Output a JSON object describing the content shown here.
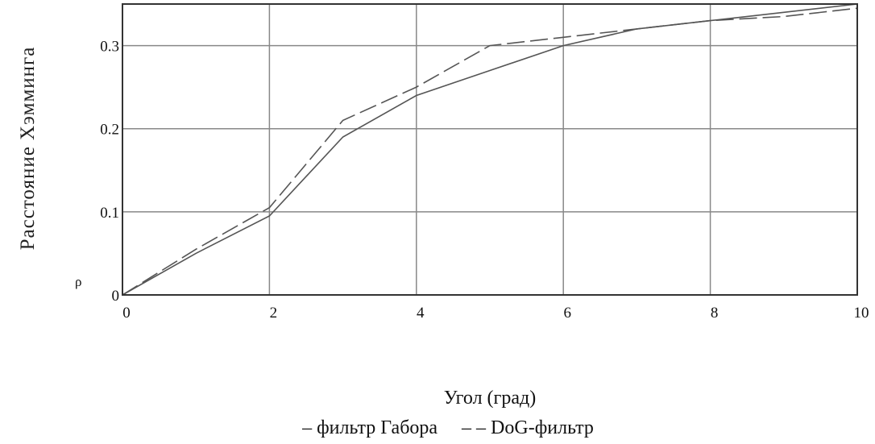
{
  "chart_data": {
    "type": "line",
    "title": "",
    "xlabel": "Угол (град)",
    "ylabel": "Расстояние Хэмминга",
    "y_variable_marker": "ρ",
    "xlim": [
      0,
      10
    ],
    "ylim": [
      0,
      0.35
    ],
    "xticks": [
      "0",
      "2",
      "4",
      "6",
      "8",
      "10"
    ],
    "yticks": [
      "0",
      "0.1",
      "0.2",
      "0.3"
    ],
    "grid": true,
    "legend_text": "– фильтр Габора     – – DoG-фильтр",
    "series": [
      {
        "name": "фильтр Габора",
        "style": "solid",
        "x": [
          0,
          1,
          2,
          3,
          4,
          5,
          6,
          7,
          8,
          9,
          10
        ],
        "y": [
          0,
          0.05,
          0.095,
          0.19,
          0.24,
          0.27,
          0.3,
          0.32,
          0.33,
          0.34,
          0.35
        ]
      },
      {
        "name": "DoG-фильтр",
        "style": "dashed",
        "x": [
          0,
          1,
          2,
          3,
          4,
          5,
          6,
          7,
          8,
          9,
          10
        ],
        "y": [
          0,
          0.055,
          0.105,
          0.21,
          0.25,
          0.3,
          0.31,
          0.32,
          0.33,
          0.335,
          0.345
        ]
      }
    ],
    "colors": {
      "axes": "#333333",
      "grid": "#888888",
      "series": "#555555"
    }
  }
}
